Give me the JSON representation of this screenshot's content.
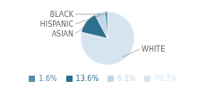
{
  "chart_data": {
    "type": "pie",
    "categories": [
      "WHITE",
      "ASIAN",
      "HISPANIC",
      "BLACK"
    ],
    "values": [
      78.7,
      13.6,
      6.1,
      1.6
    ],
    "value_labels": [
      "78.7%",
      "13.6%",
      "6.1%",
      "1.6%"
    ],
    "colors": [
      "#d6e4f0",
      "#2e6f8e",
      "#c0d8e8",
      "#5a8fa8"
    ],
    "legend": "bottom"
  }
}
